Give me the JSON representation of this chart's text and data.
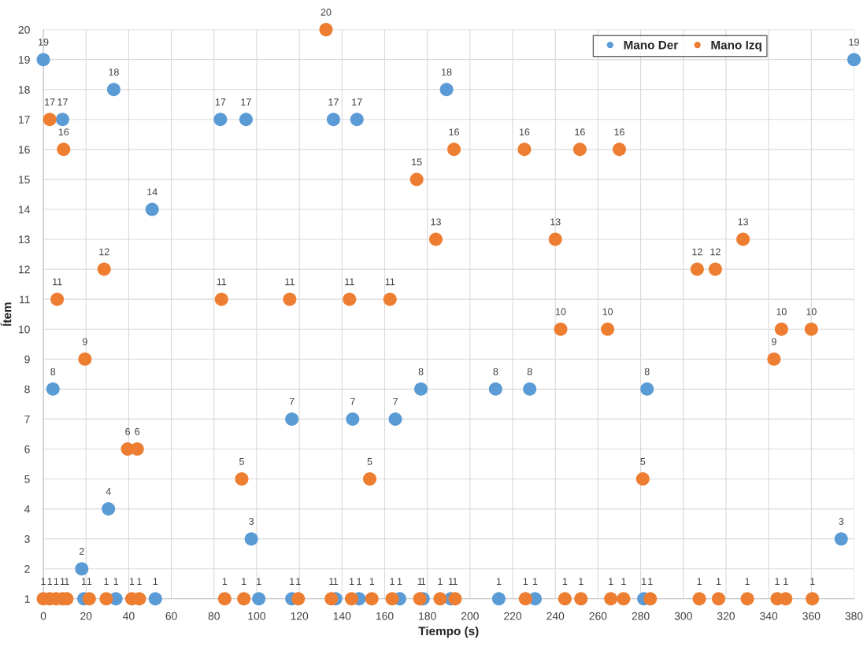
{
  "chart_data": {
    "type": "scatter",
    "xlabel": "Tiempo (s)",
    "ylabel": "Ítem",
    "xlim": [
      0,
      380
    ],
    "ylim": [
      1,
      20
    ],
    "xticks": [
      0,
      20,
      40,
      60,
      80,
      100,
      120,
      140,
      160,
      180,
      200,
      220,
      240,
      260,
      280,
      300,
      320,
      340,
      360,
      380
    ],
    "yticks": [
      1,
      2,
      3,
      4,
      5,
      6,
      7,
      8,
      9,
      10,
      11,
      12,
      13,
      14,
      15,
      16,
      17,
      18,
      19,
      20
    ],
    "grid": true,
    "legend": "top right",
    "marker": "circle",
    "data_labels": true,
    "series": [
      {
        "name": "Mano Der",
        "color": "#5b9bd5",
        "x": [
          0,
          4.5,
          9,
          18,
          30.5,
          33,
          51,
          83,
          95,
          97.5,
          116.5,
          136,
          145,
          147,
          165,
          177,
          189,
          212,
          228,
          283,
          374,
          380,
          19,
          34,
          52.5,
          101,
          116.5,
          137,
          148,
          167,
          178,
          191,
          213.5,
          230.5,
          281.5
        ],
        "values": [
          19,
          8,
          17,
          2,
          4,
          18,
          14,
          17,
          17,
          3,
          7,
          17,
          7,
          17,
          7,
          8,
          18,
          8,
          8,
          8,
          3,
          19,
          1,
          1,
          1,
          1,
          1,
          1,
          1,
          1,
          1,
          1,
          1,
          1,
          1
        ]
      },
      {
        "name": "Mano Izq",
        "color": "#ed7d31",
        "x": [
          3,
          6.5,
          9.5,
          19.5,
          28.5,
          39.5,
          44,
          83.5,
          93,
          115.5,
          132.5,
          143.5,
          153,
          162.5,
          175,
          184,
          192.5,
          225.5,
          240,
          242.5,
          251.5,
          264.5,
          270,
          281,
          306.5,
          315,
          328,
          342.5,
          346,
          360,
          0,
          3,
          6,
          9,
          11,
          21.5,
          29.5,
          41.5,
          45,
          85,
          94,
          119.5,
          135,
          144.5,
          154,
          163.5,
          176.5,
          186,
          193,
          226,
          244.5,
          252,
          266,
          272,
          284.5,
          307.5,
          316.5,
          330,
          344,
          348,
          360.5
        ],
        "values": [
          17,
          11,
          16,
          9,
          12,
          6,
          6,
          11,
          5,
          11,
          20,
          11,
          5,
          11,
          15,
          13,
          16,
          16,
          13,
          10,
          16,
          10,
          16,
          5,
          12,
          12,
          13,
          9,
          10,
          10,
          1,
          1,
          1,
          1,
          1,
          1,
          1,
          1,
          1,
          1,
          1,
          1,
          1,
          1,
          1,
          1,
          1,
          1,
          1,
          1,
          1,
          1,
          1,
          1,
          1,
          1,
          1,
          1,
          1,
          1,
          1
        ]
      }
    ]
  }
}
